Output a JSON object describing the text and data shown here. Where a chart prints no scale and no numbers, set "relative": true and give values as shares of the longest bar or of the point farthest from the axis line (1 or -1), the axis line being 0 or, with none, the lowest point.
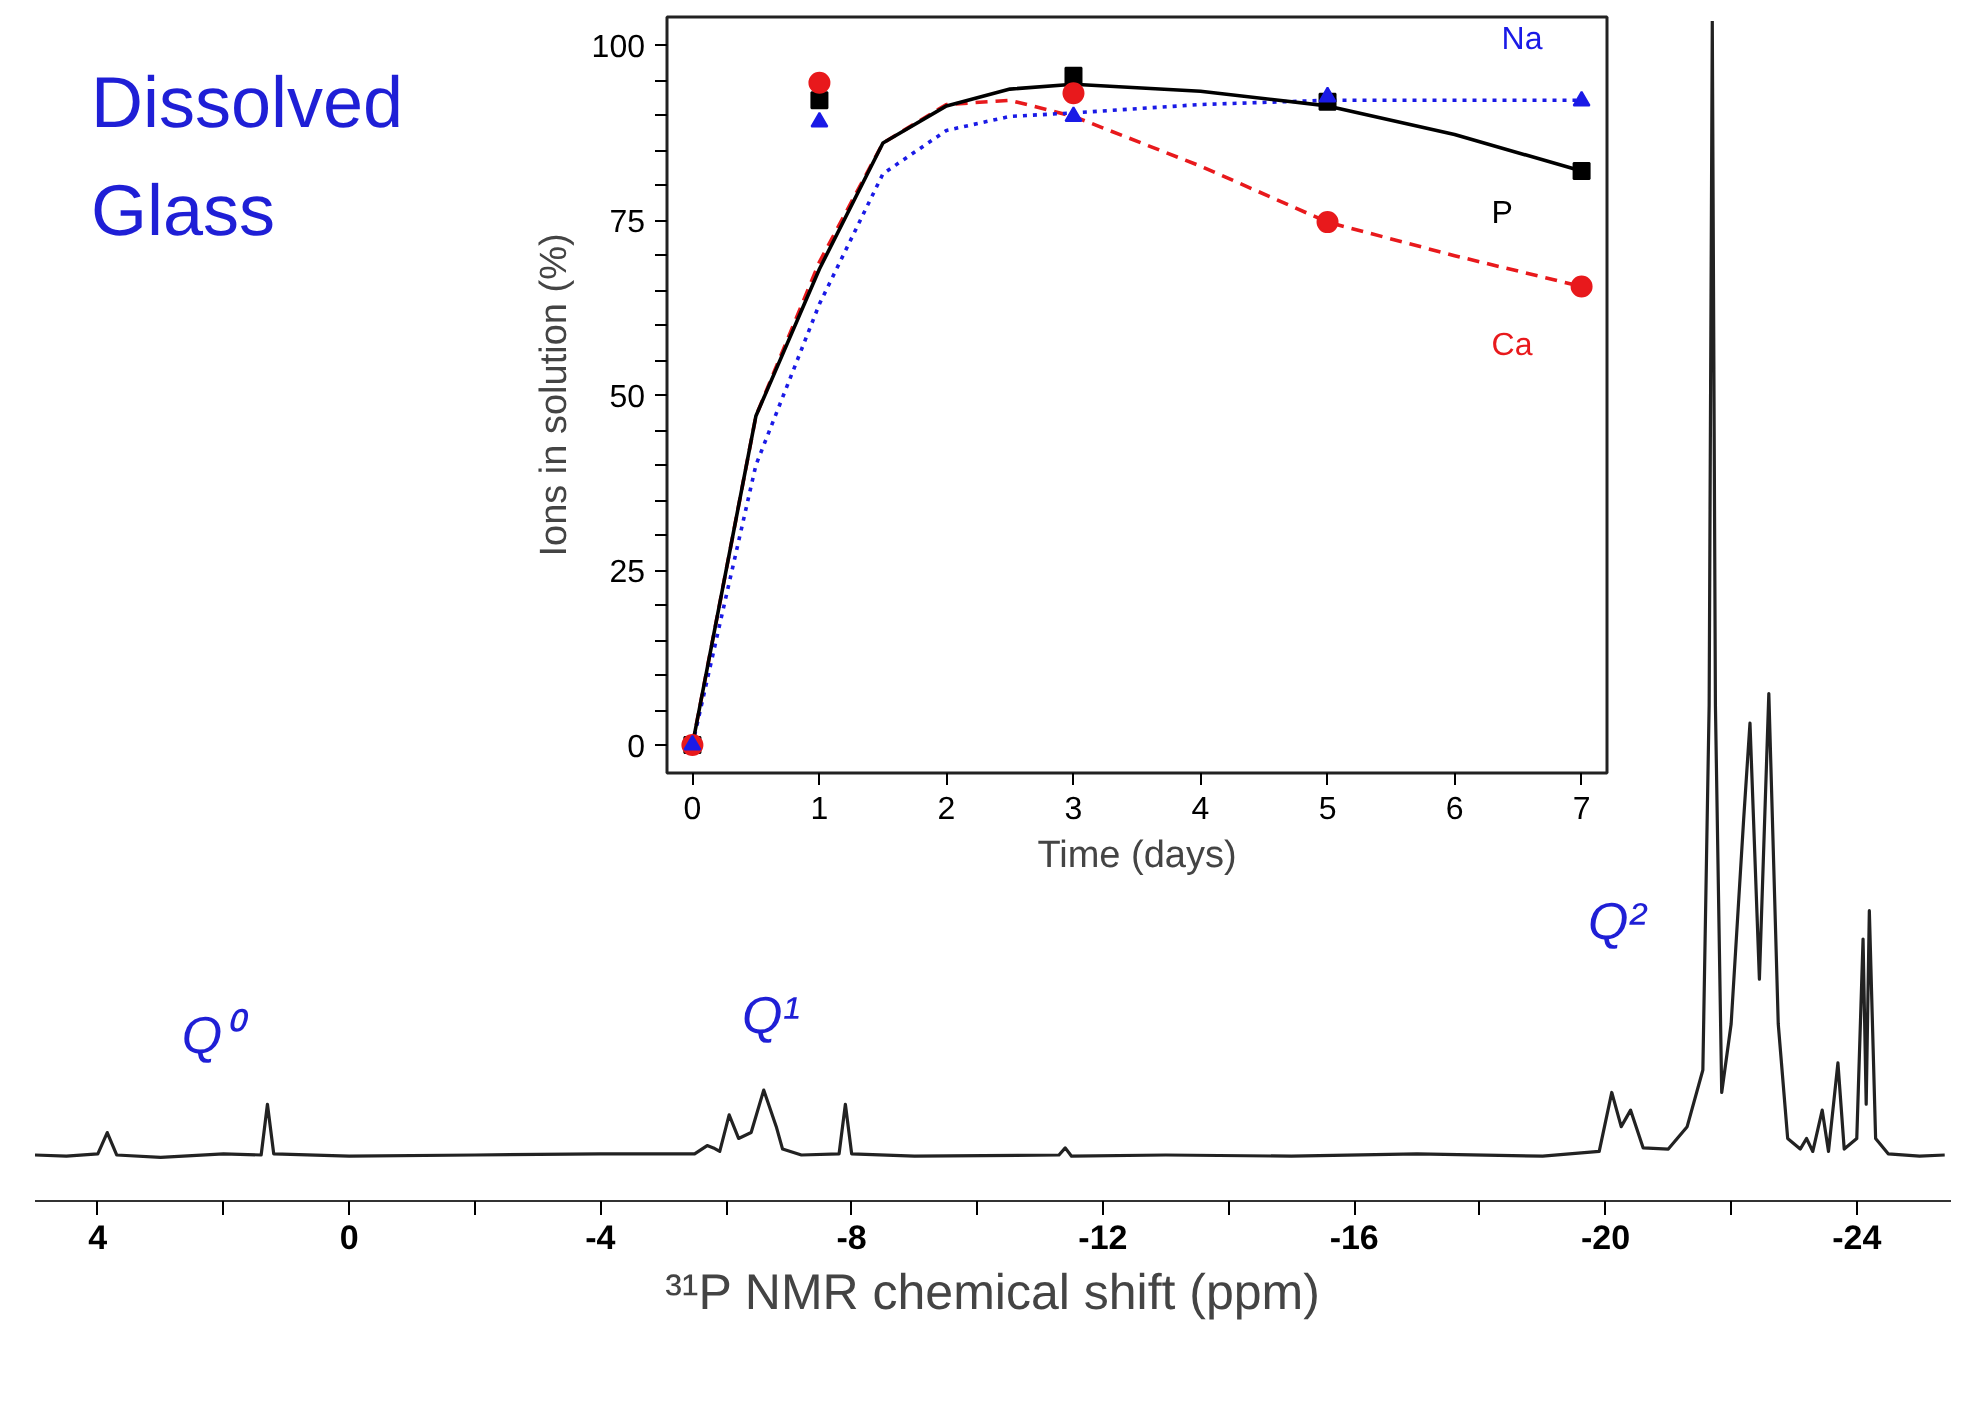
{
  "chart_data": [
    {
      "type": "line",
      "relative": true,
      "title": "Dissolved Glass",
      "xlabel": "³¹P NMR chemical shift (ppm)",
      "xlim": [
        5,
        -25.5
      ],
      "xticks": [
        4,
        {
          "value": 2,
          "label": null
        },
        0,
        {
          "value": -2,
          "label": null
        },
        -4,
        {
          "value": -6,
          "label": null
        },
        -8,
        {
          "value": -10,
          "label": null
        },
        -12,
        {
          "value": -14,
          "label": null
        },
        -16,
        {
          "value": -18,
          "label": null
        },
        -20,
        {
          "value": -22,
          "label": null
        },
        -24
      ],
      "tick_labels": "x",
      "annotations": [
        "Q⁰",
        "Q¹",
        "Q²"
      ],
      "series": [
        {
          "color": "#222222",
          "x": [
            5.0,
            4.5,
            4.0,
            3.85,
            3.7,
            3.0,
            2.0,
            1.4,
            1.3,
            1.2,
            0,
            -2,
            -4,
            -5.5,
            -5.7,
            -5.8,
            -5.9,
            -6.05,
            -6.2,
            -6.4,
            -6.6,
            -6.8,
            -6.9,
            -7.2,
            -7.8,
            -7.9,
            -8.0,
            -9,
            -11.3,
            -11.4,
            -11.5,
            -13,
            -15,
            -17,
            -19,
            -19.9,
            -20.1,
            -20.25,
            -20.4,
            -20.6,
            -21.0,
            -21.3,
            -21.55,
            -21.65,
            -21.7,
            -21.75,
            -21.85,
            -22.0,
            -22.2,
            -22.3,
            -22.45,
            -22.6,
            -22.75,
            -22.9,
            -23.1,
            -23.2,
            -23.3,
            -23.45,
            -23.55,
            -23.7,
            -23.8,
            -24.0,
            -24.1,
            -24.15,
            -24.2,
            -24.3,
            -24.5,
            -25.0,
            -25.4
          ],
          "values": [
            0.039,
            0.038,
            0.04,
            0.058,
            0.039,
            0.037,
            0.04,
            0.039,
            0.082,
            0.04,
            0.038,
            0.039,
            0.04,
            0.04,
            0.047,
            0.045,
            0.042,
            0.073,
            0.053,
            0.058,
            0.094,
            0.063,
            0.044,
            0.039,
            0.04,
            0.082,
            0.04,
            0.038,
            0.039,
            0.045,
            0.038,
            0.039,
            0.038,
            0.04,
            0.038,
            0.042,
            0.092,
            0.063,
            0.077,
            0.045,
            0.044,
            0.063,
            0.111,
            0.42,
            1.0,
            0.42,
            0.092,
            0.15,
            0.324,
            0.405,
            0.188,
            0.43,
            0.15,
            0.053,
            0.044,
            0.053,
            0.042,
            0.077,
            0.042,
            0.117,
            0.044,
            0.053,
            0.222,
            0.082,
            0.246,
            0.053,
            0.04,
            0.038,
            0.039
          ]
        }
      ]
    },
    {
      "type": "scatter",
      "xlabel": "Time (days)",
      "ylabel": "Ions in solution (%)",
      "xlim": [
        -0.2,
        7.2
      ],
      "ylim": [
        -4,
        104
      ],
      "xticks": [
        0,
        1,
        2,
        3,
        4,
        5,
        6,
        7
      ],
      "yticks": [
        0,
        {
          "value": 5,
          "label": null
        },
        {
          "value": 10,
          "label": null
        },
        {
          "value": 15,
          "label": null
        },
        {
          "value": 20,
          "label": null
        },
        25,
        {
          "value": 30,
          "label": null
        },
        {
          "value": 35,
          "label": null
        },
        {
          "value": 40,
          "label": null
        },
        {
          "value": 45,
          "label": null
        },
        50,
        {
          "value": 55,
          "label": null
        },
        {
          "value": 60,
          "label": null
        },
        {
          "value": 65,
          "label": null
        },
        {
          "value": 70,
          "label": null
        },
        75,
        {
          "value": 80,
          "label": null
        },
        {
          "value": 85,
          "label": null
        },
        {
          "value": 90,
          "label": null
        },
        {
          "value": 95,
          "label": null
        },
        100
      ],
      "x": [
        0,
        1,
        3,
        5,
        7
      ],
      "series": [
        {
          "type": "line",
          "color": "#e8191c",
          "line_style": "dashed",
          "marker": "none",
          "x": [
            0,
            0.5,
            1,
            1.5,
            2,
            2.5,
            3,
            4,
            5,
            6,
            7
          ],
          "values": [
            0,
            47,
            69,
            86,
            91.5,
            92.1,
            89.8,
            82.7,
            74.7,
            69.9,
            65.5
          ]
        },
        {
          "type": "line",
          "color": "#1a1ae6",
          "line_style": "dotted",
          "marker": "none",
          "x": [
            0,
            0.5,
            1,
            1.5,
            2,
            2.5,
            3,
            4,
            5,
            6,
            7
          ],
          "values": [
            0,
            40,
            63,
            81.6,
            87.8,
            89.8,
            90.3,
            91.5,
            92.1,
            92.1,
            92.1
          ]
        },
        {
          "type": "line",
          "color": "#000000",
          "line_style": "solid",
          "marker": "none",
          "x": [
            0,
            0.5,
            1,
            1.5,
            2,
            2.5,
            3,
            4,
            5,
            6,
            7
          ],
          "values": [
            0,
            47,
            68,
            86,
            91.3,
            93.7,
            94.4,
            93.4,
            91.3,
            87.2,
            82
          ]
        },
        {
          "name": "P",
          "color": "#000000",
          "marker": "square",
          "values": [
            0,
            92.1,
            95.6,
            91.9,
            82
          ]
        },
        {
          "name": "Ca",
          "color": "#e8191c",
          "marker": "circle",
          "values": [
            0,
            94.6,
            93.1,
            74.7,
            65.5
          ]
        },
        {
          "name": "Na",
          "color": "#1a1ae6",
          "marker": "triangle",
          "values": [
            0,
            89,
            89.8,
            92.6,
            92
          ]
        }
      ]
    }
  ]
}
